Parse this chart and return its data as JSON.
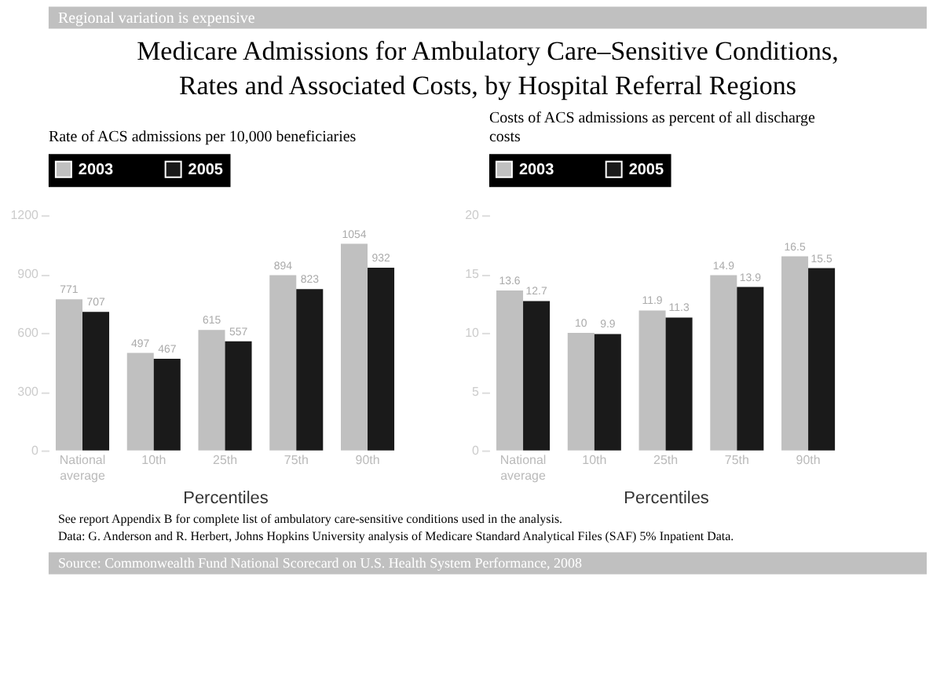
{
  "chart_data": [
    {
      "type": "bar",
      "title": "Medicare Admissions for Ambulatory Care–Sensitive Conditions, Rates and Associated Costs, by Hospital Referral Regions",
      "subtitle": "Regional variation is expensive",
      "ylabel": "Rate of ACS admissions per 10,000 beneficiaries",
      "xlabel": "Percentiles",
      "categories": [
        "National average",
        "10th",
        "25th",
        "75th",
        "90th"
      ],
      "series": [
        {
          "name": "2003",
          "color": "#c0c0c0",
          "values": [
            771,
            497,
            615,
            894,
            1054
          ]
        },
        {
          "name": "2005",
          "color": "#1a1a1a",
          "values": [
            707,
            467,
            557,
            823,
            932
          ]
        }
      ],
      "ylim": [
        0,
        1200
      ],
      "yticks": [
        0,
        300,
        600,
        900,
        1200
      ],
      "grid": false,
      "legend": "top",
      "data_labels": true,
      "annotations": [
        "See report Appendix B for complete list of ambulatory care-sensitive conditions used in the analysis.",
        "Data: G. Anderson and R. Herbert, Johns Hopkins University analysis of Medicare Standard Analytical Files (SAF) 5% Inpatient Data.",
        "Source: Commonwealth Fund National Scorecard on U.S. Health System Performance, 2008"
      ]
    },
    {
      "type": "bar",
      "ylabel": "Costs of ACS admissions as percent of all discharge costs",
      "xlabel": "Percentiles",
      "categories": [
        "National average",
        "10th",
        "25th",
        "75th",
        "90th"
      ],
      "series": [
        {
          "name": "2003",
          "color": "#c0c0c0",
          "values": [
            13.6,
            10.0,
            11.9,
            14.9,
            16.5
          ]
        },
        {
          "name": "2005",
          "color": "#1a1a1a",
          "values": [
            12.7,
            9.9,
            11.3,
            13.9,
            15.5
          ]
        }
      ],
      "ylim": [
        0,
        20
      ],
      "yticks": [
        0,
        5,
        10,
        15,
        20
      ],
      "grid": false,
      "legend": "top",
      "data_labels": true
    }
  ]
}
